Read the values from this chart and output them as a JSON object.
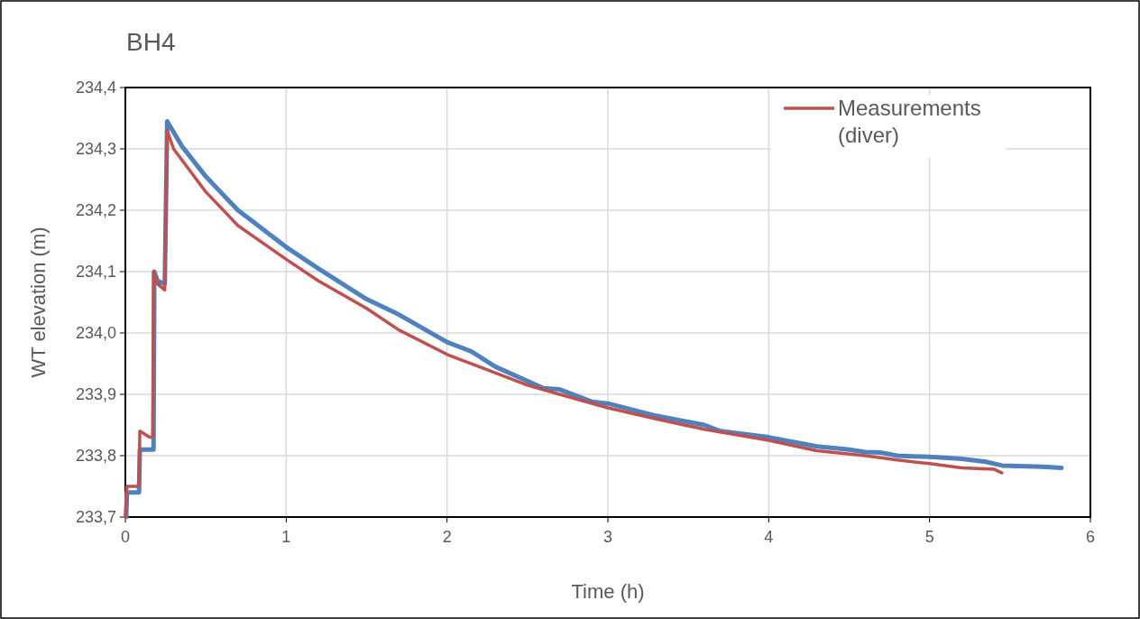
{
  "chart_data": {
    "type": "line",
    "title": "BH4",
    "xlabel": "Time (h)",
    "ylabel": "WT elevation (m)",
    "xlim": [
      0,
      6
    ],
    "xticks": [
      0,
      1,
      2,
      3,
      4,
      5,
      6
    ],
    "ylim": [
      233.7,
      234.4
    ],
    "yticks": [
      {
        "value": 233.7,
        "label": "233,7"
      },
      {
        "value": 233.8,
        "label": "233,8"
      },
      {
        "value": 233.9,
        "label": "233,9"
      },
      {
        "value": 234.0,
        "label": "234,0"
      },
      {
        "value": 234.1,
        "label": "234,1"
      },
      {
        "value": 234.2,
        "label": "234,2"
      },
      {
        "value": 234.3,
        "label": "234,3"
      },
      {
        "value": 234.4,
        "label": "234,4"
      }
    ],
    "grid": true,
    "legend": "top right",
    "marker": "none",
    "line_style": "solid",
    "series": [
      {
        "color": "#4f81bd",
        "x": [
          0.005,
          0.01,
          0.085,
          0.09,
          0.175,
          0.18,
          0.2,
          0.245,
          0.26,
          0.35,
          0.5,
          0.7,
          0.8,
          1.0,
          1.2,
          1.5,
          1.7,
          2.0,
          2.15,
          2.3,
          2.6,
          2.7,
          2.9,
          3.0,
          3.3,
          3.6,
          3.7,
          4.0,
          4.3,
          4.5,
          4.6,
          4.7,
          4.8,
          5.0,
          5.2,
          5.35,
          5.45,
          5.7,
          5.82
        ],
        "values": [
          233.7,
          233.74,
          233.74,
          233.81,
          233.81,
          234.1,
          234.085,
          234.08,
          234.345,
          234.305,
          234.255,
          234.2,
          234.18,
          234.14,
          234.105,
          234.055,
          234.03,
          233.985,
          233.97,
          233.945,
          233.91,
          233.908,
          233.888,
          233.885,
          233.865,
          233.85,
          233.84,
          233.83,
          233.815,
          233.81,
          233.806,
          233.805,
          233.8,
          233.798,
          233.795,
          233.79,
          233.784,
          233.782,
          233.78
        ]
      },
      {
        "name": "Measurements (diver)",
        "color": "#c0504d",
        "x": [
          0,
          0.01,
          0.07,
          0.085,
          0.09,
          0.15,
          0.17,
          0.175,
          0.2,
          0.245,
          0.26,
          0.3,
          0.5,
          0.7,
          1.0,
          1.2,
          1.5,
          1.7,
          2.0,
          2.2,
          2.5,
          2.7,
          3.0,
          3.3,
          3.6,
          4.0,
          4.3,
          4.6,
          4.8,
          5.0,
          5.2,
          5.4,
          5.45
        ],
        "values": [
          233.7,
          233.75,
          233.75,
          233.75,
          233.84,
          233.83,
          233.83,
          234.1,
          234.08,
          234.07,
          234.33,
          234.3,
          234.23,
          234.175,
          234.12,
          234.085,
          234.04,
          234.005,
          233.965,
          233.945,
          233.915,
          233.9,
          233.878,
          233.86,
          233.843,
          233.825,
          233.808,
          233.8,
          233.793,
          233.787,
          233.78,
          233.778,
          233.772
        ]
      }
    ]
  }
}
